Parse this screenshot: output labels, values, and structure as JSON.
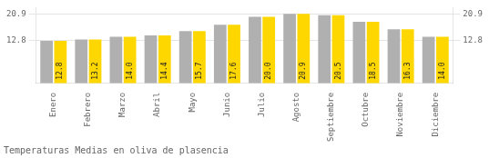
{
  "chart_data": {
    "type": "bar",
    "title": "Temperaturas Medias en oliva de plasencia",
    "categories": [
      "Enero",
      "Febrero",
      "Marzo",
      "Abril",
      "Mayo",
      "Junio",
      "Julio",
      "Agosto",
      "Septiembre",
      "Octubre",
      "Noviembre",
      "Diciembre"
    ],
    "series": [
      {
        "color": "#B0B0B0",
        "values": [
          12.8,
          13.2,
          14.0,
          14.4,
          15.7,
          17.6,
          20.0,
          20.9,
          20.5,
          18.5,
          16.3,
          14.0
        ]
      },
      {
        "color": "#FFD700",
        "values": [
          12.8,
          13.2,
          14.0,
          14.4,
          15.7,
          17.6,
          20.0,
          20.9,
          20.5,
          18.5,
          16.3,
          14.0
        ],
        "value_labels": [
          "12.8",
          "13.2",
          "14.0",
          "14.4",
          "15.7",
          "17.6",
          "20.0",
          "20.9",
          "20.5",
          "18.5",
          "16.3",
          "14.0"
        ],
        "data_labels": true
      }
    ],
    "ylim": [
      0,
      22.781
    ],
    "yticks": [
      12.8,
      20.9
    ],
    "y2lim": [
      0,
      22.781
    ],
    "y2ticks": [
      12.8,
      20.9
    ],
    "grid": true
  }
}
